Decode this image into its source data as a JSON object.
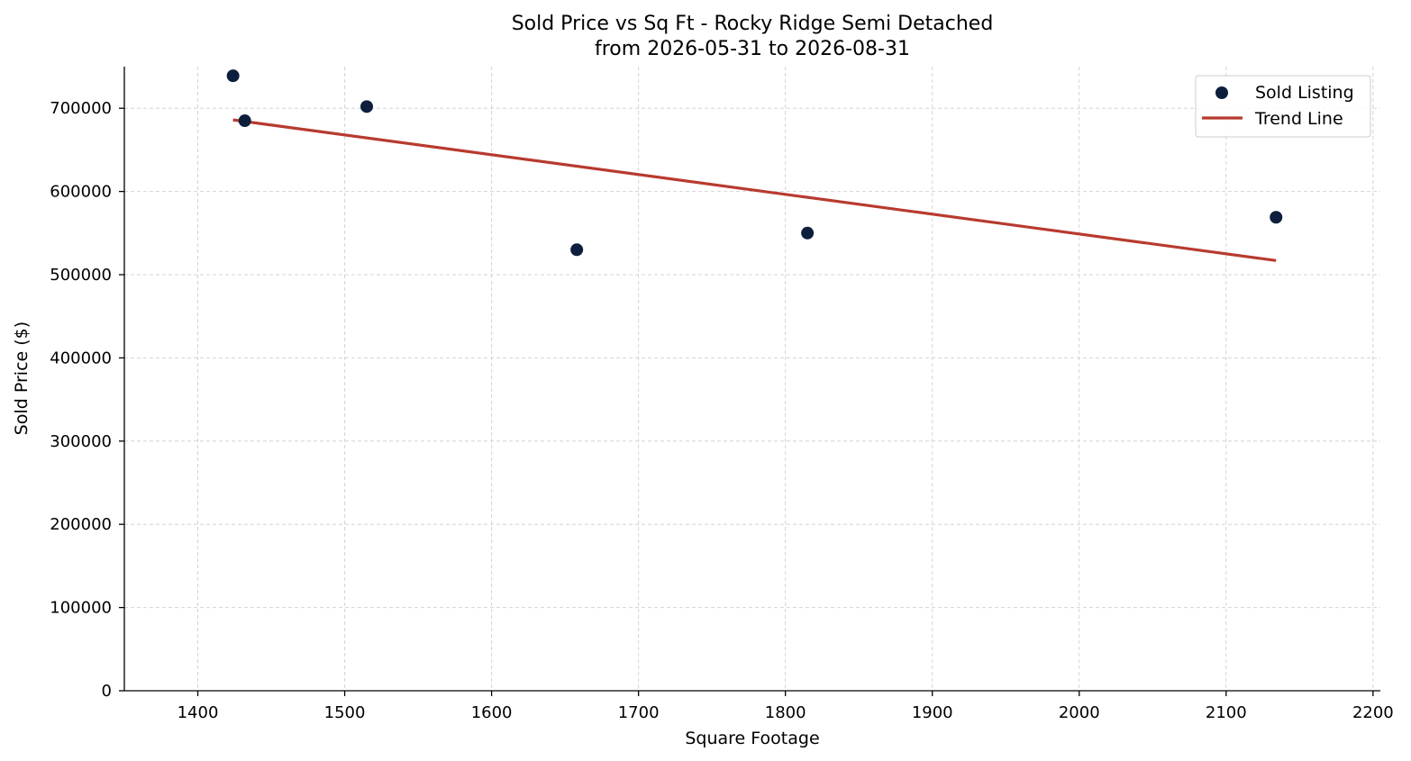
{
  "chart_data": {
    "type": "scatter",
    "title": "Sold Price vs Sq Ft - Rocky Ridge Semi Detached",
    "subtitle": "from 2026-05-31 to 2026-08-31",
    "xlabel": "Square Footage",
    "ylabel": "Sold Price ($)",
    "xlim": [
      1350,
      2205
    ],
    "ylim": [
      0,
      750000
    ],
    "xticks": [
      1400,
      1500,
      1600,
      1700,
      1800,
      1900,
      2000,
      2100,
      2200
    ],
    "yticks": [
      0,
      100000,
      200000,
      300000,
      400000,
      500000,
      600000,
      700000
    ],
    "grid": true,
    "legend_position": "top-right",
    "series": [
      {
        "name": "Sold Listing",
        "kind": "scatter",
        "color": "#0d1f3c",
        "x": [
          1424,
          1432,
          1515,
          1658,
          1815,
          2134
        ],
        "y": [
          739000,
          685000,
          702000,
          530000,
          550000,
          569000
        ]
      },
      {
        "name": "Trend Line",
        "kind": "line",
        "color": "#b83a2e",
        "x": [
          1424,
          2134
        ],
        "y": [
          686000,
          517000
        ]
      }
    ]
  }
}
